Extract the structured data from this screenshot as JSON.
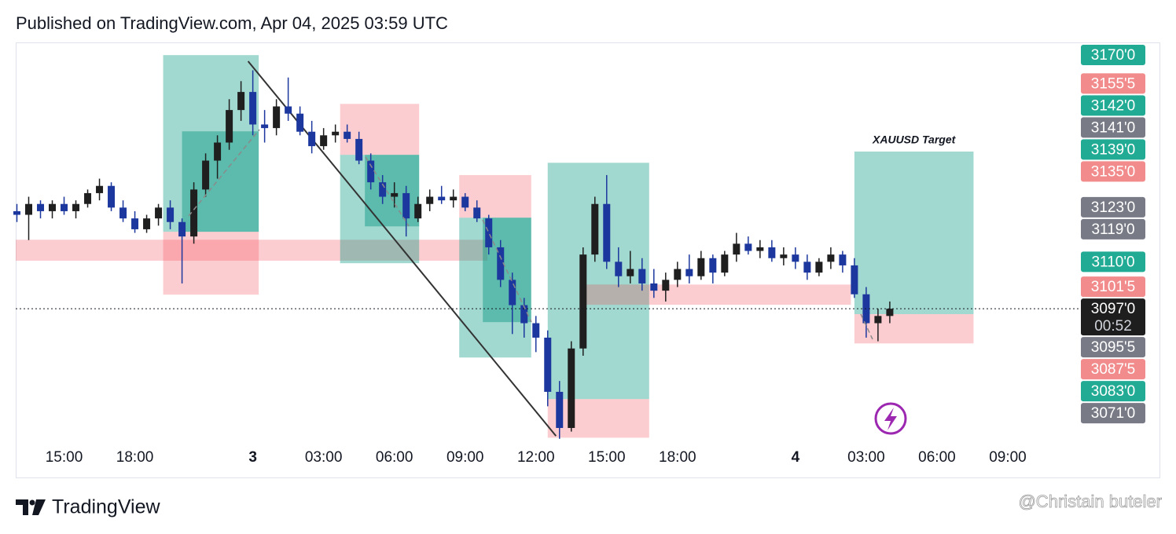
{
  "header": {
    "published": "Published on TradingView.com, Apr 04, 2025 03:59 UTC"
  },
  "chart_data": {
    "type": "candlestick",
    "x": [
      -4,
      -3,
      -2,
      -1,
      0,
      1,
      2,
      3,
      4,
      5,
      6,
      7,
      8,
      9,
      10,
      11,
      12,
      13,
      14,
      15,
      16,
      17,
      18,
      19,
      20,
      21,
      22,
      23,
      24,
      25,
      26,
      27,
      28,
      29,
      30,
      31,
      32,
      33,
      34,
      35,
      36,
      37,
      38,
      39,
      40,
      41,
      42,
      43,
      44,
      45,
      46,
      47,
      48,
      49,
      50,
      51,
      52,
      53,
      54,
      55,
      56,
      57,
      58,
      59,
      60,
      61,
      62,
      63,
      64,
      65,
      66,
      67,
      68,
      69,
      70
    ],
    "open": [
      3124,
      3123,
      3126,
      3124,
      3126,
      3124,
      3126,
      3129,
      3131,
      3125,
      3122,
      3119,
      3122,
      3125,
      3121,
      3117,
      3130,
      3138,
      3143,
      3152,
      3157,
      3148,
      3147,
      3153,
      3151,
      3146,
      3142,
      3145,
      3146,
      3144,
      3138,
      3132,
      3128,
      3129,
      3122,
      3126,
      3128,
      3127,
      3128,
      3125,
      3122,
      3114,
      3105,
      3098,
      3093,
      3089,
      3074,
      3064,
      3086,
      3112,
      3126,
      3110,
      3106,
      3108,
      3104,
      3102,
      3105,
      3108,
      3106,
      3111,
      3107,
      3112,
      3115,
      3113,
      3114,
      3111,
      3112,
      3110,
      3107,
      3110,
      3112,
      3109,
      3101,
      3093,
      3095
    ],
    "high": [
      3126,
      3128,
      3127,
      3127,
      3128,
      3127,
      3130,
      3133,
      3132,
      3127,
      3124,
      3123,
      3126,
      3127,
      3122,
      3132,
      3140,
      3145,
      3155,
      3160,
      3163,
      3152,
      3155,
      3161,
      3153,
      3149,
      3147,
      3148,
      3148,
      3146,
      3140,
      3134,
      3132,
      3131,
      3128,
      3130,
      3131,
      3130,
      3129,
      3127,
      3123,
      3116,
      3107,
      3100,
      3095,
      3091,
      3077,
      3088,
      3114,
      3128,
      3134,
      3114,
      3113,
      3111,
      3108,
      3107,
      3110,
      3112,
      3113,
      3112,
      3113,
      3118,
      3117,
      3116,
      3116,
      3114,
      3114,
      3112,
      3111,
      3114,
      3113,
      3111,
      3103,
      3097,
      3099
    ],
    "low": [
      3121,
      3116,
      3122,
      3122,
      3123,
      3122,
      3125,
      3127,
      3124,
      3121,
      3118,
      3118,
      3120,
      3119,
      3104,
      3115,
      3128,
      3133,
      3141,
      3149,
      3145,
      3143,
      3145,
      3149,
      3145,
      3140,
      3141,
      3143,
      3143,
      3137,
      3130,
      3126,
      3125,
      3117,
      3121,
      3124,
      3126,
      3125,
      3124,
      3121,
      3112,
      3103,
      3090,
      3089,
      3085,
      3070,
      3061,
      3063,
      3084,
      3110,
      3108,
      3103,
      3104,
      3102,
      3100,
      3099,
      3103,
      3104,
      3105,
      3104,
      3106,
      3110,
      3112,
      3111,
      3110,
      3109,
      3108,
      3105,
      3106,
      3108,
      3107,
      3100,
      3089,
      3088,
      3093
    ],
    "close": [
      3123,
      3126,
      3124,
      3126,
      3124,
      3126,
      3129,
      3131,
      3125,
      3122,
      3119,
      3122,
      3125,
      3121,
      3117,
      3130,
      3138,
      3143,
      3152,
      3157,
      3148,
      3147,
      3153,
      3151,
      3146,
      3142,
      3145,
      3146,
      3144,
      3138,
      3132,
      3128,
      3129,
      3122,
      3126,
      3128,
      3127,
      3128,
      3125,
      3122,
      3114,
      3105,
      3098,
      3093,
      3089,
      3074,
      3064,
      3086,
      3112,
      3126,
      3110,
      3106,
      3108,
      3104,
      3102,
      3105,
      3108,
      3106,
      3111,
      3107,
      3112,
      3115,
      3113,
      3114,
      3111,
      3112,
      3110,
      3107,
      3110,
      3112,
      3109,
      3101,
      3093,
      3095,
      3097
    ],
    "up_color": "#1f1f1f",
    "down_color": "#1c389e",
    "xlim": [
      -4.1,
      86.2
    ],
    "xticks": [
      {
        "value": 0,
        "label": "15:00"
      },
      {
        "value": 6,
        "label": "18:00"
      },
      {
        "value": 16,
        "label": "3"
      },
      {
        "value": 22,
        "label": "03:00"
      },
      {
        "value": 28,
        "label": "06:00"
      },
      {
        "value": 34,
        "label": "09:00"
      },
      {
        "value": 40,
        "label": "12:00"
      },
      {
        "value": 46,
        "label": "15:00"
      },
      {
        "value": 52,
        "label": "18:00"
      },
      {
        "value": 62,
        "label": "4"
      },
      {
        "value": 68,
        "label": "03:00"
      },
      {
        "value": 74,
        "label": "06:00"
      },
      {
        "value": 80,
        "label": "09:00"
      }
    ],
    "ylim": [
      3050.3,
      3170.5
    ],
    "yticks": [
      {
        "value": 3170,
        "label": "3170'0",
        "color": "#22ab94"
      },
      {
        "value": 3155.5,
        "label": "3155'5",
        "color": "#f28b8b"
      },
      {
        "value": 3142,
        "label": "3142'0",
        "color": "#22ab94"
      },
      {
        "value": 3141,
        "label": "3141'0",
        "color": "#787b86"
      },
      {
        "value": 3139,
        "label": "3139'0",
        "color": "#22ab94"
      },
      {
        "value": 3135,
        "label": "3135'0",
        "color": "#f28b8b"
      },
      {
        "value": 3123,
        "label": "3123'0",
        "color": "#787b86"
      },
      {
        "value": 3119,
        "label": "3119'0",
        "color": "#787b86"
      },
      {
        "value": 3110,
        "label": "3110'0",
        "color": "#22ab94"
      },
      {
        "value": 3101.5,
        "label": "3101'5",
        "color": "#f28b8b"
      },
      {
        "value": 3095.5,
        "label": "3095'5",
        "color": "#787b86"
      },
      {
        "value": 3087.5,
        "label": "3087'5",
        "color": "#f28b8b"
      },
      {
        "value": 3083,
        "label": "3083'0",
        "color": "#22ab94"
      },
      {
        "value": 3071,
        "label": "3071'0",
        "color": "#787b86"
      }
    ],
    "last_price": {
      "value": 3097,
      "label": "3097'0",
      "countdown": "00:52",
      "color": "#1e1e1e"
    },
    "zones": [
      {
        "x": [
          -4.1,
          35.9
        ],
        "y": [
          3110.3,
          3116.1
        ],
        "color": "rgba(242,54,69,0.25)"
      },
      {
        "x": [
          8.4,
          16.5
        ],
        "y": [
          3118.3,
          3167.2
        ],
        "color": "rgba(8,153,129,0.38)"
      },
      {
        "x": [
          10.0,
          16.5
        ],
        "y": [
          3118.3,
          3146.1
        ],
        "color": "rgba(8,153,129,0.45)"
      },
      {
        "x": [
          8.4,
          16.5
        ],
        "y": [
          3100.9,
          3118.3
        ],
        "color": "rgba(242,54,69,0.25)"
      },
      {
        "x": [
          23.4,
          30.1
        ],
        "y": [
          3139.6,
          3153.7
        ],
        "color": "rgba(242,54,69,0.25)"
      },
      {
        "x": [
          23.4,
          30.1
        ],
        "y": [
          3109.6,
          3139.6
        ],
        "color": "rgba(8,153,129,0.38)"
      },
      {
        "x": [
          25.5,
          30.1
        ],
        "y": [
          3119.8,
          3139.6
        ],
        "color": "rgba(8,153,129,0.45)"
      },
      {
        "x": [
          33.5,
          39.6
        ],
        "y": [
          3122.2,
          3134.0
        ],
        "color": "rgba(242,54,69,0.25)"
      },
      {
        "x": [
          33.5,
          39.6
        ],
        "y": [
          3083.5,
          3122.2
        ],
        "color": "rgba(8,153,129,0.38)"
      },
      {
        "x": [
          35.5,
          39.6
        ],
        "y": [
          3093.3,
          3122.2
        ],
        "color": "rgba(8,153,129,0.45)"
      },
      {
        "x": [
          41.0,
          49.6
        ],
        "y": [
          3072.0,
          3137.4
        ],
        "color": "rgba(8,153,129,0.38)"
      },
      {
        "x": [
          41.0,
          49.6
        ],
        "y": [
          3061.3,
          3072.0
        ],
        "color": "rgba(242,54,69,0.25)"
      },
      {
        "x": [
          44.2,
          66.7
        ],
        "y": [
          3098.1,
          3103.7
        ],
        "color": "rgba(242,54,69,0.25)"
      },
      {
        "x": [
          67.0,
          77.1
        ],
        "y": [
          3095.5,
          3140.5
        ],
        "color": "rgba(8,153,129,0.38)",
        "label": "XAUUSD Target"
      },
      {
        "x": [
          67.0,
          77.1
        ],
        "y": [
          3087.4,
          3095.5
        ],
        "color": "rgba(242,54,69,0.25)"
      }
    ],
    "trend_line": {
      "x": [
        15.6,
        41.7
      ],
      "y": [
        3165.5,
        3061.8
      ],
      "color": "#333333"
    }
  },
  "footer": {
    "brand": "TradingView",
    "watermark": "@Christain buteler"
  }
}
